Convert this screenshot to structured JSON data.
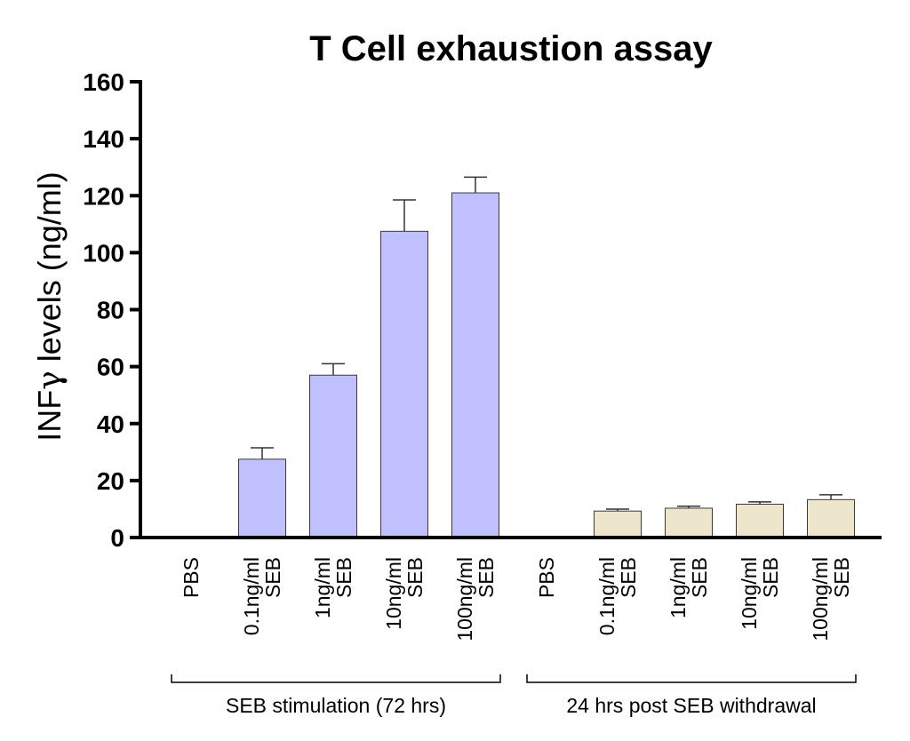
{
  "chart_data": {
    "type": "bar",
    "title": "T Cell exhaustion assay",
    "ylabel_prefix": "INF",
    "ylabel_symbol": "γ",
    "ylabel_suffix": " levels (ng/ml)",
    "ylim": [
      0,
      160
    ],
    "yticks": [
      0,
      20,
      40,
      60,
      80,
      100,
      120,
      140,
      160
    ],
    "colors": {
      "stimulation": "#c0c0ff",
      "withdrawal": "#eee6cc",
      "stroke": "#3a3a3a"
    },
    "groups": [
      {
        "label": "SEB stimulation (72 hrs)",
        "color_key": "stimulation",
        "bars": [
          {
            "line1": "PBS",
            "line2": "",
            "value": 0.3,
            "error": 0
          },
          {
            "line1": "0.1ng/ml",
            "line2": "SEB",
            "value": 27.5,
            "error": 4
          },
          {
            "line1": "1ng/ml",
            "line2": "SEB",
            "value": 57,
            "error": 4
          },
          {
            "line1": "10ng/ml",
            "line2": "SEB",
            "value": 107.5,
            "error": 11
          },
          {
            "line1": "100ng/ml",
            "line2": "SEB",
            "value": 121,
            "error": 5.5
          }
        ]
      },
      {
        "label": "24 hrs post SEB withdrawal",
        "color_key": "withdrawal",
        "bars": [
          {
            "line1": "PBS",
            "line2": "",
            "value": 0.3,
            "error": 0
          },
          {
            "line1": "0.1ng/ml",
            "line2": "SEB",
            "value": 9.3,
            "error": 0.7
          },
          {
            "line1": "1ng/ml",
            "line2": "SEB",
            "value": 10.3,
            "error": 0.7
          },
          {
            "line1": "10ng/ml",
            "line2": "SEB",
            "value": 11.7,
            "error": 0.8
          },
          {
            "line1": "100ng/ml",
            "line2": "SEB",
            "value": 13.3,
            "error": 1.7
          }
        ]
      }
    ]
  }
}
